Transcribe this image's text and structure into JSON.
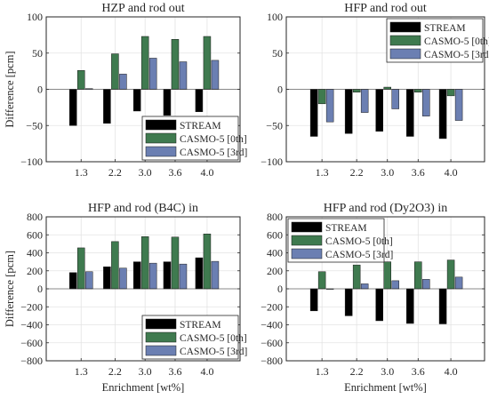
{
  "colors": {
    "stream": "#000000",
    "casmo_0th": "#3f7a4f",
    "casmo_3rd": "#6b7fb2",
    "grid": "#e3e3e3",
    "axis": "#262626"
  },
  "chart_data": [
    {
      "type": "bar",
      "title": "HZP and rod out",
      "xlabel": "",
      "ylabel": "Difference [pcm]",
      "categories": [
        "1.3",
        "2.2",
        "3.0",
        "3.6",
        "4.0"
      ],
      "ylim": [
        -100,
        100
      ],
      "yticks": [
        "100",
        "50",
        "0",
        "−50",
        "−100"
      ],
      "grid": true,
      "legend_position": "bottom-right",
      "series": [
        {
          "name": "STREAM",
          "values": [
            -50,
            -47,
            -30,
            -36,
            -31
          ]
        },
        {
          "name": "CASMO-5 [0th]",
          "values": [
            26,
            49,
            73,
            69,
            73
          ]
        },
        {
          "name": "CASMO-5 [3rd]",
          "values": [
            1,
            21,
            43,
            38,
            40
          ]
        }
      ]
    },
    {
      "type": "bar",
      "title": "HFP and rod out",
      "xlabel": "",
      "ylabel": "",
      "categories": [
        "1.3",
        "2.2",
        "3.0",
        "3.6",
        "4.0"
      ],
      "ylim": [
        -100,
        100
      ],
      "yticks": [
        "100",
        "50",
        "0",
        "−50",
        "−100"
      ],
      "grid": true,
      "legend_position": "top-right",
      "series": [
        {
          "name": "STREAM",
          "values": [
            -65,
            -61,
            -58,
            -65,
            -68
          ]
        },
        {
          "name": "CASMO-5 [0th]",
          "values": [
            -20,
            -4,
            3,
            -4,
            -9
          ]
        },
        {
          "name": "CASMO-5 [3rd]",
          "values": [
            -45,
            -32,
            -27,
            -37,
            -43
          ]
        }
      ]
    },
    {
      "type": "bar",
      "title": "HFP and rod (B4C) in",
      "xlabel": "Enrichment [wt%]",
      "ylabel": "Difference [pcm]",
      "categories": [
        "1.3",
        "2.2",
        "3.0",
        "3.6",
        "4.0"
      ],
      "ylim": [
        -800,
        800
      ],
      "yticks": [
        "800",
        "600",
        "400",
        "200",
        "0",
        "−200",
        "−400",
        "−600",
        "−800"
      ],
      "grid": true,
      "legend_position": "bottom-right",
      "series": [
        {
          "name": "STREAM",
          "values": [
            180,
            245,
            300,
            300,
            345
          ]
        },
        {
          "name": "CASMO-5 [0th]",
          "values": [
            455,
            525,
            580,
            575,
            610
          ]
        },
        {
          "name": "CASMO-5 [3rd]",
          "values": [
            190,
            230,
            285,
            275,
            305
          ]
        }
      ]
    },
    {
      "type": "bar",
      "title": "HFP and rod (Dy2O3) in",
      "xlabel": "Enrichment [wt%]",
      "ylabel": "",
      "categories": [
        "1.3",
        "2.2",
        "3.0",
        "3.6",
        "4.0"
      ],
      "ylim": [
        -800,
        800
      ],
      "yticks": [
        "800",
        "600",
        "400",
        "200",
        "0",
        "−200",
        "−400",
        "−600",
        "−800"
      ],
      "grid": true,
      "legend_position": "top-left",
      "series": [
        {
          "name": "STREAM",
          "values": [
            -245,
            -300,
            -355,
            -385,
            -390
          ]
        },
        {
          "name": "CASMO-5 [0th]",
          "values": [
            190,
            265,
            300,
            300,
            320
          ]
        },
        {
          "name": "CASMO-5 [3rd]",
          "values": [
            -5,
            55,
            90,
            105,
            130
          ]
        }
      ]
    }
  ]
}
